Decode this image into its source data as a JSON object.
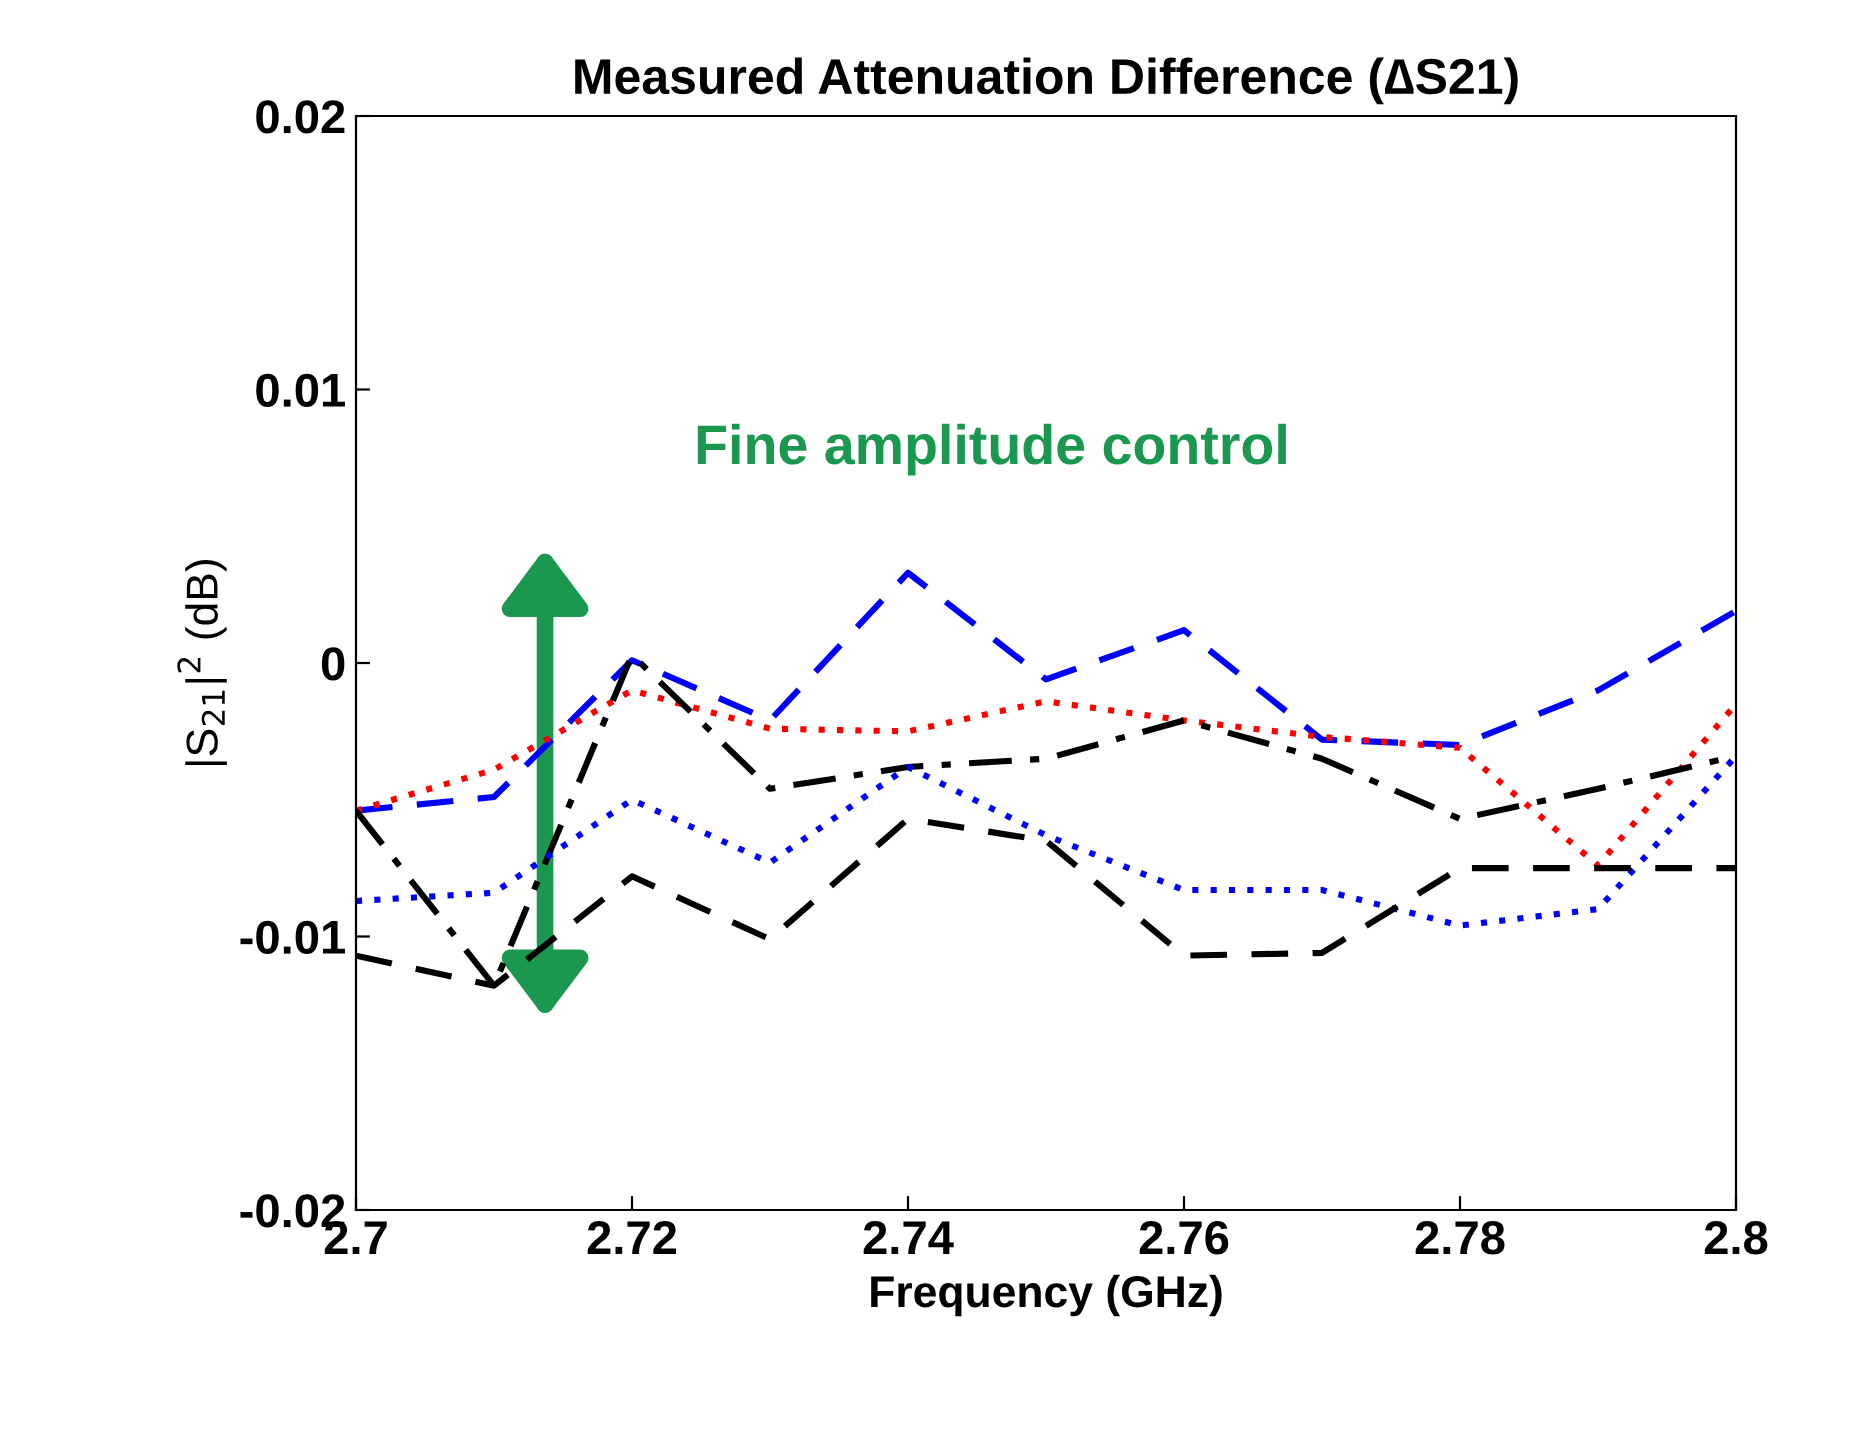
{
  "chart_data": {
    "type": "line",
    "title": "Measured Attenuation Difference (∆S21)",
    "xlabel": "Frequency (GHz)",
    "ylabel": "|S$_{21}$|$^{2}$ (dB)",
    "annotations": [
      "Fine amplitude control"
    ],
    "x": [
      2.7,
      2.71,
      2.72,
      2.73,
      2.74,
      2.75,
      2.76,
      2.77,
      2.78,
      2.79,
      2.8
    ],
    "series": [
      {
        "color": "#0000ff",
        "line_style": "dashed",
        "values": [
          -0.0054,
          -0.0049,
          0.0001,
          -0.0021,
          0.0033,
          -0.0006,
          0.0012,
          -0.0028,
          -0.003,
          -0.001,
          0.0019
        ]
      },
      {
        "color": "#ff0000",
        "line_style": "dotted",
        "values": [
          -0.0054,
          -0.0039,
          -0.001,
          -0.0024,
          -0.0025,
          -0.0014,
          -0.0021,
          -0.0027,
          -0.0031,
          -0.0074,
          -0.0015
        ]
      },
      {
        "color": "#000000",
        "line_style": "dashdot",
        "values": [
          -0.0054,
          -0.0118,
          0.0003,
          -0.0046,
          -0.0038,
          -0.0035,
          -0.0021,
          -0.0035,
          -0.0057,
          -0.0046,
          -0.0034
        ]
      },
      {
        "color": "#0000ff",
        "line_style": "dotted",
        "values": [
          -0.0087,
          -0.0084,
          -0.005,
          -0.0073,
          -0.0038,
          -0.0063,
          -0.0083,
          -0.0083,
          -0.0096,
          -0.009,
          -0.0034
        ]
      },
      {
        "color": "#000000",
        "line_style": "dashed",
        "values": [
          -0.0107,
          -0.0118,
          -0.0078,
          -0.0101,
          -0.0057,
          -0.0065,
          -0.0107,
          -0.0106,
          -0.0075,
          -0.0075,
          -0.0075
        ]
      }
    ],
    "xlim": [
      2.7,
      2.8
    ],
    "xticks": [
      2.7,
      2.72,
      2.74,
      2.76,
      2.78,
      2.8
    ],
    "ylim": [
      -0.02,
      0.02
    ],
    "yticks": [
      -0.02,
      -0.01,
      0,
      0.01,
      0.02
    ],
    "grid": false,
    "legend": false,
    "marker": "none"
  }
}
